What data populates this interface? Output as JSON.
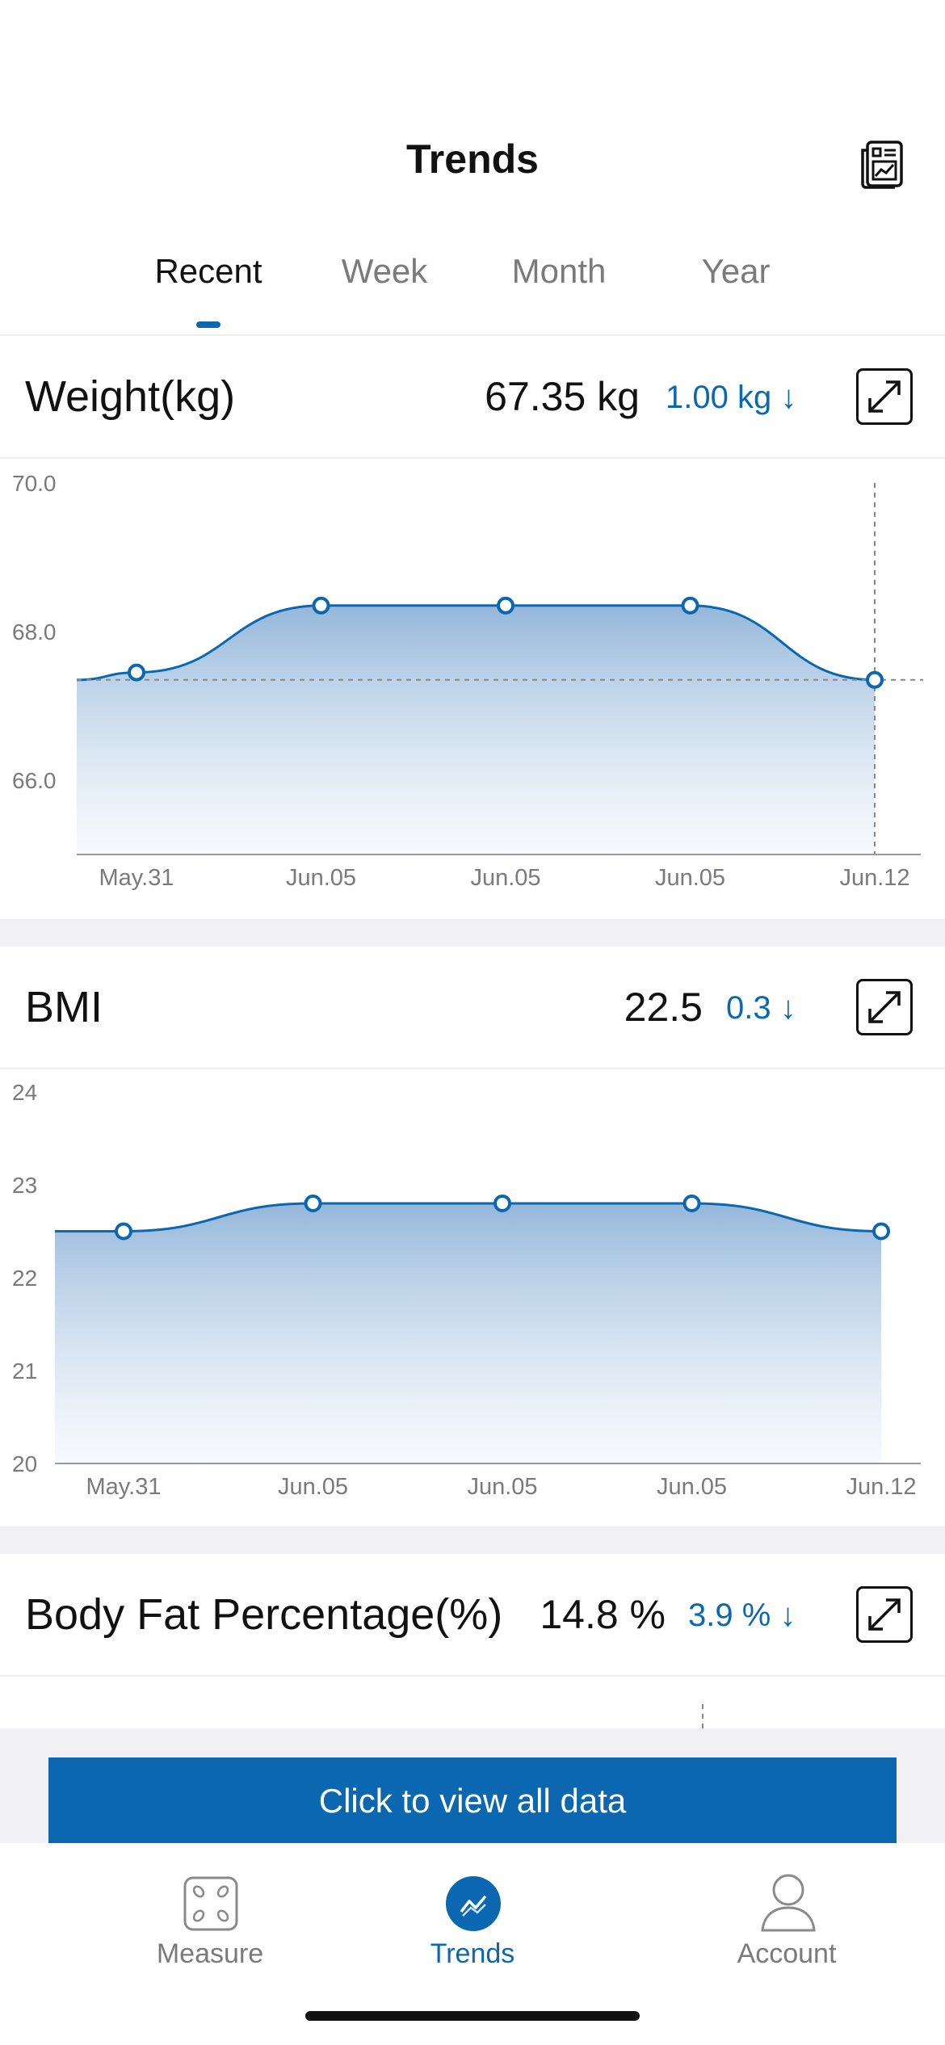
{
  "header": {
    "title": "Trends",
    "report_icon": "report-chart-icon"
  },
  "tabs": [
    {
      "label": "Recent",
      "active": true
    },
    {
      "label": "Week",
      "active": false
    },
    {
      "label": "Month",
      "active": false
    },
    {
      "label": "Year",
      "active": false
    }
  ],
  "weight_card": {
    "title": "Weight(kg)",
    "value": "67.35 kg",
    "change": "1.00 kg ↓",
    "expand_icon": "expand-icon"
  },
  "bmi_card": {
    "title": "BMI",
    "value": "22.5",
    "change": "0.3 ↓",
    "expand_icon": "expand-icon"
  },
  "body_fat_card": {
    "title": "Body Fat Percentage(%)",
    "value": "14.8 %",
    "change": "3.9 % ↓",
    "expand_icon": "expand-icon"
  },
  "view_all_button": "Click to view all data",
  "nav": {
    "items": [
      {
        "label": "Measure",
        "icon": "scale-icon",
        "active": false
      },
      {
        "label": "Trends",
        "icon": "trends-icon",
        "active": true
      },
      {
        "label": "Account",
        "icon": "person-icon",
        "active": false
      }
    ]
  },
  "colors": {
    "accent": "#0b68b0",
    "muted": "#7a7a7a"
  },
  "chart_data": [
    {
      "type": "area",
      "title": "Weight(kg)",
      "categories": [
        "May.31",
        "Jun.05",
        "Jun.05",
        "Jun.05",
        "Jun.12"
      ],
      "values": [
        67.45,
        68.35,
        68.35,
        68.35,
        67.35
      ],
      "yticks": [
        "70.0",
        "68.0",
        "66.0"
      ],
      "ylim": [
        65.0,
        70.0
      ],
      "reference_line": 67.35,
      "grid": false
    },
    {
      "type": "area",
      "title": "BMI",
      "categories": [
        "May.31",
        "Jun.05",
        "Jun.05",
        "Jun.05",
        "Jun.12"
      ],
      "values": [
        22.5,
        22.8,
        22.8,
        22.8,
        22.5
      ],
      "yticks": [
        "24",
        "23",
        "22",
        "21",
        "20"
      ],
      "ylim": [
        20,
        24
      ],
      "grid": false
    }
  ]
}
